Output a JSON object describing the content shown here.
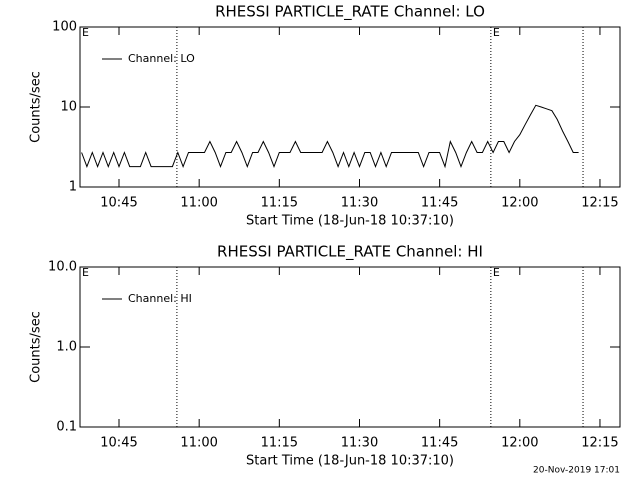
{
  "chart_data": [
    {
      "type": "line",
      "title": "RHESSI PARTICLE_RATE Channel: LO",
      "xlabel": "Start Time (18-Jun-18 10:37:10)",
      "ylabel": "Counts/sec",
      "log_y": true,
      "ylim": [
        1,
        100
      ],
      "yticks": [
        1,
        10,
        100
      ],
      "xlim": [
        "10:37:42",
        "12:18:45"
      ],
      "xticks": [
        "10:45",
        "11:00",
        "11:15",
        "11:30",
        "11:45",
        "12:00",
        "12:15"
      ],
      "vlines": [
        "10:55:50",
        "11:54:35",
        "12:11:50"
      ],
      "markers": [
        {
          "x": "10:37:42",
          "label": "E"
        },
        {
          "x": "11:54:35",
          "label": "E"
        }
      ],
      "legend": "upper left",
      "x": [
        "10:38",
        "10:39",
        "10:40",
        "10:41",
        "10:42",
        "10:43",
        "10:44",
        "10:45",
        "10:46",
        "10:47",
        "10:48",
        "10:49",
        "10:50",
        "10:51",
        "10:52",
        "10:53",
        "10:54",
        "10:55",
        "10:56",
        "10:57",
        "10:58",
        "10:59",
        "11:00",
        "11:01",
        "11:02",
        "11:03",
        "11:04",
        "11:05",
        "11:06",
        "11:07",
        "11:08",
        "11:09",
        "11:10",
        "11:11",
        "11:12",
        "11:13",
        "11:14",
        "11:15",
        "11:16",
        "11:17",
        "11:18",
        "11:19",
        "11:20",
        "11:21",
        "11:22",
        "11:23",
        "11:24",
        "11:25",
        "11:26",
        "11:27",
        "11:28",
        "11:29",
        "11:30",
        "11:31",
        "11:32",
        "11:33",
        "11:34",
        "11:35",
        "11:36",
        "11:37",
        "11:38",
        "11:39",
        "11:40",
        "11:41",
        "11:42",
        "11:43",
        "11:44",
        "11:45",
        "11:46",
        "11:47",
        "11:48",
        "11:49",
        "11:50",
        "11:51",
        "11:52",
        "11:53",
        "11:54",
        "11:55",
        "11:56",
        "11:57",
        "11:58",
        "11:59",
        "12:00",
        "12:01",
        "12:02",
        "12:03",
        "12:04",
        "12:05",
        "12:06",
        "12:07",
        "12:08",
        "12:09",
        "12:10",
        "12:11"
      ],
      "series": [
        {
          "name": "Channel: LO",
          "color": "#000000",
          "values": [
            2.7,
            1.8,
            2.7,
            1.8,
            2.7,
            1.8,
            2.7,
            1.8,
            2.7,
            1.8,
            1.8,
            1.8,
            2.7,
            1.8,
            1.8,
            1.8,
            1.8,
            1.8,
            2.7,
            1.8,
            2.7,
            2.7,
            2.7,
            2.7,
            3.7,
            2.7,
            1.8,
            2.7,
            2.7,
            3.7,
            2.7,
            1.8,
            2.7,
            2.7,
            3.7,
            2.7,
            1.8,
            2.7,
            2.7,
            2.7,
            3.7,
            2.7,
            2.7,
            2.7,
            2.7,
            2.7,
            3.7,
            2.7,
            1.8,
            2.7,
            1.8,
            2.7,
            1.8,
            2.7,
            2.7,
            1.8,
            2.7,
            1.8,
            2.7,
            2.7,
            2.7,
            2.7,
            2.7,
            2.7,
            1.8,
            2.7,
            2.7,
            2.7,
            1.8,
            3.7,
            2.7,
            1.8,
            2.7,
            3.7,
            2.7,
            2.7,
            3.7,
            2.7,
            3.7,
            3.7,
            2.7,
            3.7,
            4.5,
            6,
            8,
            10.5,
            10,
            9.5,
            9,
            7,
            5,
            3.7,
            2.7,
            2.7
          ]
        }
      ]
    },
    {
      "type": "line",
      "title": "RHESSI PARTICLE_RATE Channel: HI",
      "xlabel": "Start Time (18-Jun-18 10:37:10)",
      "ylabel": "Counts/sec",
      "log_y": true,
      "ylim": [
        0.1,
        10
      ],
      "yticks": [
        0.1,
        {
          "value": 1,
          "label": "1.0"
        },
        {
          "value": 10,
          "label": "10.0"
        }
      ],
      "xlim": [
        "10:37:42",
        "12:18:45"
      ],
      "xticks": [
        "10:45",
        "11:00",
        "11:15",
        "11:30",
        "11:45",
        "12:00",
        "12:15"
      ],
      "vlines": [
        "10:55:50",
        "11:54:35",
        "12:11:50"
      ],
      "markers": [
        {
          "x": "10:37:42",
          "label": "E"
        },
        {
          "x": "11:54:35",
          "label": "E"
        }
      ],
      "legend": "upper left",
      "x": [],
      "series": [
        {
          "name": "Channel: HI",
          "color": "#000000",
          "values": []
        }
      ]
    }
  ],
  "footer": "20-Nov-2019 17:01"
}
